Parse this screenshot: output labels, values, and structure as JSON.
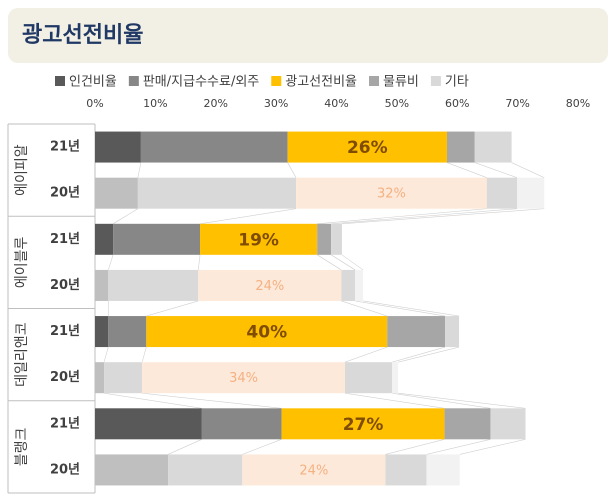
{
  "chart_data": {
    "type": "stacked_barh",
    "title": "광고선전비율",
    "groups": [
      "에이피알",
      "에이블루",
      "데일리앤코",
      "블랭크"
    ],
    "categories": [
      "21년",
      "20년",
      "21년",
      "20년",
      "21년",
      "20년",
      "21년",
      "20년"
    ],
    "xlim": [
      0,
      80
    ],
    "xticks": [
      {
        "value": 0,
        "label": "0%"
      },
      {
        "value": 10,
        "label": "10%"
      },
      {
        "value": 20,
        "label": "20%"
      },
      {
        "value": 30,
        "label": "30%"
      },
      {
        "value": 40,
        "label": "40%"
      },
      {
        "value": 50,
        "label": "50%"
      },
      {
        "value": 60,
        "label": "60%"
      },
      {
        "value": 70,
        "label": "70%"
      },
      {
        "value": 80,
        "label": "80%"
      }
    ],
    "legend": "top",
    "series": [
      {
        "name": "인건비율",
        "color": "#595959",
        "colors": [
          "#595959",
          "#bfbfbf",
          "#595959",
          "#bfbfbf",
          "#595959",
          "#bfbfbf",
          "#595959",
          "#bfbfbf"
        ],
        "values": [
          7.6,
          7.1,
          3.0,
          2.2,
          2.2,
          1.5,
          17.7,
          12.1
        ]
      },
      {
        "name": "판매/지급수수료/외주",
        "color": "#878787",
        "colors": [
          "#878787",
          "#d9d9d9",
          "#878787",
          "#d9d9d9",
          "#878787",
          "#d9d9d9",
          "#878787",
          "#d9d9d9"
        ],
        "values": [
          24.3,
          26.2,
          14.4,
          14.9,
          6.3,
          6.3,
          13.2,
          12.3
        ]
      },
      {
        "name": "광고선전비율",
        "color": "#ffc000",
        "colors": [
          "#ffc000",
          "#fde9d9",
          "#ffc000",
          "#fde9d9",
          "#ffc000",
          "#fde9d9",
          "#ffc000",
          "#fde9d9"
        ],
        "values": [
          26.4,
          31.6,
          19.4,
          23.7,
          39.9,
          33.6,
          27.0,
          23.7
        ],
        "value_labels": [
          "26%",
          "32%",
          "19%",
          "24%",
          "40%",
          "34%",
          "27%",
          "24%"
        ],
        "label_colors": [
          "#7f4c00",
          "#f4b183",
          "#7f4c00",
          "#f4b183",
          "#7f4c00",
          "#f4b183",
          "#7f4c00",
          "#f4b183"
        ]
      },
      {
        "name": "물류비",
        "color": "#a6a6a6",
        "colors": [
          "#a6a6a6",
          "#d9d9d9",
          "#a6a6a6",
          "#d9d9d9",
          "#a6a6a6",
          "#d9d9d9",
          "#a6a6a6",
          "#d9d9d9"
        ],
        "values": [
          4.6,
          5.0,
          2.3,
          2.3,
          9.6,
          7.8,
          7.6,
          6.8
        ]
      },
      {
        "name": "기타",
        "color": "#d9d9d9",
        "colors": [
          "#d9d9d9",
          "#f2f2f2",
          "#d9d9d9",
          "#f2f2f2",
          "#d9d9d9",
          "#f2f2f2",
          "#d9d9d9",
          "#f2f2f2"
        ],
        "values": [
          6.1,
          4.5,
          1.8,
          1.3,
          2.3,
          1.0,
          5.8,
          5.5
        ]
      }
    ]
  }
}
